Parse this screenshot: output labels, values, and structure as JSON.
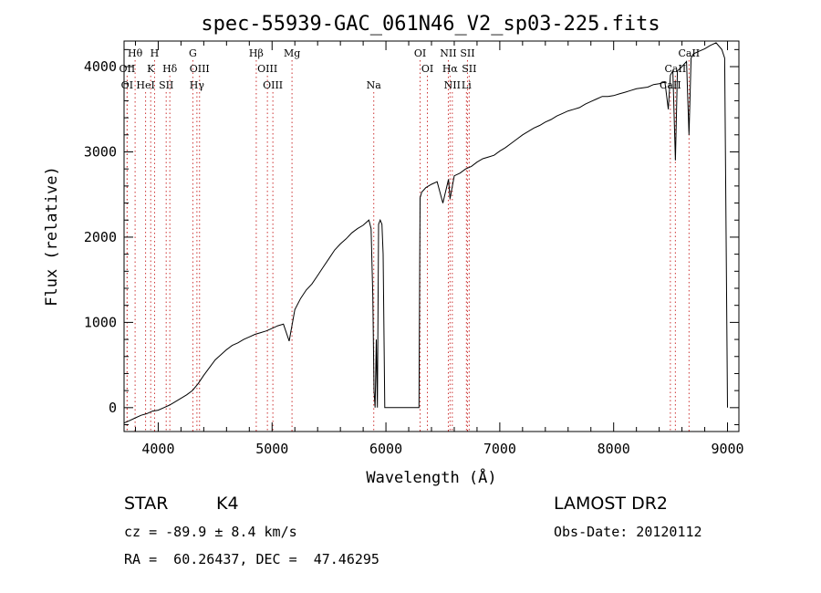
{
  "chart_data": {
    "type": "line",
    "title": "spec-55939-GAC_061N46_V2_sp03-225.fits",
    "xlabel": "Wavelength (Å)",
    "ylabel": "Flux (relative)",
    "xlim": [
      3700,
      9100
    ],
    "ylim": [
      -280,
      4300
    ],
    "xticks": [
      4000,
      5000,
      6000,
      7000,
      8000,
      9000
    ],
    "yticks": [
      0,
      1000,
      2000,
      3000,
      4000
    ],
    "grid": false,
    "line_color": "#000000",
    "marker_color": "#cc3333",
    "series": [
      {
        "x": [
          3700,
          3750,
          3800,
          3850,
          3900,
          3950,
          4000,
          4050,
          4100,
          4150,
          4200,
          4250,
          4300,
          4350,
          4400,
          4450,
          4500,
          4550,
          4600,
          4650,
          4700,
          4750,
          4800,
          4850,
          4900,
          4950,
          5000,
          5050,
          5100,
          5150,
          5200,
          5250,
          5300,
          5350,
          5400,
          5450,
          5500,
          5550,
          5600,
          5650,
          5700,
          5750,
          5800,
          5850,
          5870,
          5885,
          5895,
          5905,
          5915,
          5925,
          5935,
          5950,
          5965,
          5975,
          5990,
          6000,
          6050,
          6100,
          6150,
          6200,
          6250,
          6290,
          6300,
          6315,
          6330,
          6350,
          6400,
          6450,
          6500,
          6550,
          6563,
          6600,
          6650,
          6700,
          6750,
          6800,
          6850,
          6900,
          6950,
          7000,
          7050,
          7100,
          7150,
          7200,
          7250,
          7300,
          7350,
          7400,
          7450,
          7500,
          7550,
          7600,
          7650,
          7700,
          7750,
          7800,
          7850,
          7900,
          7950,
          8000,
          8050,
          8100,
          8150,
          8200,
          8250,
          8300,
          8350,
          8400,
          8450,
          8480,
          8498,
          8520,
          8542,
          8560,
          8600,
          8640,
          8662,
          8680,
          8700,
          8750,
          8800,
          8850,
          8900,
          8950,
          8975,
          9000
        ],
        "y": [
          -180,
          -150,
          -120,
          -90,
          -70,
          -40,
          -30,
          0,
          30,
          70,
          110,
          150,
          200,
          280,
          380,
          470,
          560,
          620,
          680,
          730,
          760,
          800,
          830,
          860,
          880,
          900,
          930,
          960,
          980,
          780,
          1150,
          1280,
          1380,
          1450,
          1550,
          1650,
          1750,
          1850,
          1920,
          1980,
          2050,
          2100,
          2140,
          2200,
          2100,
          1300,
          200,
          0,
          800,
          0,
          2150,
          2200,
          2150,
          1800,
          0,
          0,
          0,
          0,
          0,
          0,
          0,
          0,
          2460,
          2530,
          2550,
          2580,
          2620,
          2650,
          2400,
          2680,
          2450,
          2720,
          2750,
          2800,
          2830,
          2880,
          2920,
          2940,
          2960,
          3010,
          3050,
          3100,
          3150,
          3200,
          3240,
          3280,
          3310,
          3350,
          3380,
          3420,
          3450,
          3480,
          3500,
          3520,
          3560,
          3590,
          3620,
          3650,
          3650,
          3660,
          3680,
          3700,
          3720,
          3740,
          3750,
          3760,
          3790,
          3800,
          3820,
          3500,
          3900,
          3950,
          2900,
          3950,
          4000,
          4060,
          3200,
          4100,
          4150,
          4180,
          4210,
          4250,
          4280,
          4200,
          4100,
          0
        ]
      }
    ],
    "lines": [
      {
        "label": "Hθ",
        "x": 3797,
        "row": 1
      },
      {
        "label": "OII",
        "x": 3727,
        "row": 2
      },
      {
        "label": "OI",
        "x": 3727,
        "row": 3
      },
      {
        "label": "H",
        "x": 3968,
        "row": 1
      },
      {
        "label": "K",
        "x": 3934,
        "row": 2
      },
      {
        "label": "HeI",
        "x": 3889,
        "row": 3
      },
      {
        "label": "Hδ",
        "x": 4102,
        "row": 2
      },
      {
        "label": "SII",
        "x": 4070,
        "row": 3
      },
      {
        "label": "G",
        "x": 4304,
        "row": 1
      },
      {
        "label": "OIII",
        "x": 4363,
        "row": 2
      },
      {
        "label": "Hγ",
        "x": 4340,
        "row": 3
      },
      {
        "label": "Hβ",
        "x": 4861,
        "row": 1
      },
      {
        "label": "OIII",
        "x": 4959,
        "row": 2
      },
      {
        "label": "OIII",
        "x": 5007,
        "row": 3
      },
      {
        "label": "Mg",
        "x": 5175,
        "row": 1
      },
      {
        "label": "Na",
        "x": 5893,
        "row": 3
      },
      {
        "label": "OI",
        "x": 6300,
        "row": 1
      },
      {
        "label": "OI",
        "x": 6364,
        "row": 2
      },
      {
        "label": "NII",
        "x": 6548,
        "row": 1
      },
      {
        "label": "Hα",
        "x": 6563,
        "row": 2
      },
      {
        "label": "NII",
        "x": 6583,
        "row": 3
      },
      {
        "label": "SII",
        "x": 6716,
        "row": 1
      },
      {
        "label": "SII",
        "x": 6731,
        "row": 2
      },
      {
        "label": "Li",
        "x": 6707,
        "row": 3
      },
      {
        "label": "CaII",
        "x": 8662,
        "row": 1
      },
      {
        "label": "CaII",
        "x": 8542,
        "row": 2
      },
      {
        "label": "CaII",
        "x": 8498,
        "row": 3
      }
    ]
  },
  "info": {
    "object_class": "STAR",
    "subclass": "K4",
    "survey": "LAMOST DR2",
    "redshift": "cz = -89.9 ± 8.4 km/s",
    "obs_date": "Obs-Date: 20120112",
    "coords": "RA =  60.26437, DEC =  47.46295"
  }
}
